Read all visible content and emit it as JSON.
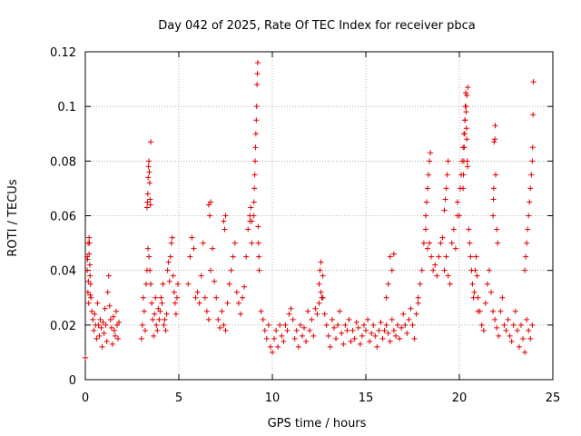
{
  "chart_data": {
    "type": "scatter",
    "title": "Day 042 of 2025, Rate Of TEC Index for receiver pbca",
    "xlabel": "GPS time / hours",
    "ylabel": "ROTI / TECUs",
    "xlim": [
      0,
      25
    ],
    "ylim": [
      0,
      0.12
    ],
    "xticks": [
      "0",
      "5",
      "10",
      "15",
      "20",
      "25"
    ],
    "yticks": [
      "0",
      "0.02",
      "0.04",
      "0.06",
      "0.08",
      "0.1",
      "0.12"
    ],
    "grid": true,
    "marker": "+",
    "color": "#e00000",
    "series": [
      {
        "name": "ROTI",
        "x": [
          0.0,
          0.1,
          0.15,
          0.2,
          0.25,
          0.3,
          0.35,
          0.4,
          0.45,
          0.5,
          0.55,
          0.6,
          0.65,
          0.7,
          0.75,
          0.8,
          0.85,
          0.9,
          0.95,
          1.0,
          1.05,
          1.1,
          1.15,
          1.2,
          1.25,
          1.3,
          1.35,
          1.4,
          1.45,
          1.5,
          1.55,
          1.6,
          1.65,
          1.7,
          1.75,
          1.8,
          0.1,
          0.12,
          0.14,
          0.16,
          0.18,
          0.2,
          0.22,
          0.24,
          0.26,
          0.28,
          3.0,
          3.05,
          3.1,
          3.15,
          3.2,
          3.25,
          3.3,
          3.35,
          3.4,
          3.45,
          3.5,
          3.55,
          3.6,
          3.65,
          3.7,
          3.75,
          3.8,
          3.85,
          3.9,
          3.95,
          4.0,
          4.05,
          4.1,
          4.15,
          4.2,
          4.25,
          4.3,
          4.35,
          4.4,
          4.45,
          4.5,
          4.55,
          4.6,
          4.65,
          4.7,
          4.75,
          4.8,
          4.85,
          4.9,
          4.95,
          3.3,
          3.32,
          3.34,
          3.36,
          3.38,
          3.4,
          3.42,
          3.44,
          3.46,
          3.48,
          3.5,
          5.5,
          5.6,
          5.7,
          5.8,
          5.9,
          6.0,
          6.1,
          6.2,
          6.3,
          6.4,
          6.5,
          6.6,
          6.7,
          6.8,
          6.9,
          7.0,
          7.1,
          7.2,
          7.3,
          7.4,
          7.5,
          7.6,
          7.7,
          7.8,
          7.9,
          8.0,
          8.1,
          8.2,
          8.3,
          8.4,
          8.5,
          8.6,
          8.7,
          8.8,
          8.9,
          6.6,
          6.65,
          6.7,
          7.4,
          7.45,
          7.5,
          8.8,
          8.85,
          8.9,
          9.0,
          9.02,
          9.04,
          9.06,
          9.08,
          9.1,
          9.12,
          9.14,
          9.16,
          9.18,
          9.2,
          9.22,
          9.24,
          9.26,
          9.28,
          9.3,
          9.4,
          9.5,
          9.6,
          9.7,
          9.8,
          9.9,
          10.0,
          10.1,
          10.2,
          10.3,
          10.4,
          10.5,
          10.6,
          10.7,
          10.8,
          10.9,
          11.0,
          11.1,
          11.2,
          11.3,
          11.4,
          11.5,
          11.6,
          11.7,
          11.8,
          11.9,
          12.0,
          12.1,
          12.2,
          12.3,
          12.4,
          12.5,
          12.6,
          12.7,
          12.8,
          12.9,
          13.0,
          13.1,
          13.2,
          13.3,
          13.4,
          13.5,
          13.6,
          13.7,
          13.8,
          13.9,
          14.0,
          14.1,
          14.2,
          14.3,
          14.4,
          14.5,
          14.6,
          14.7,
          14.8,
          14.9,
          15.0,
          15.1,
          15.2,
          15.3,
          15.4,
          15.5,
          15.6,
          15.7,
          15.8,
          15.9,
          16.0,
          16.1,
          16.2,
          16.3,
          16.4,
          16.5,
          16.6,
          16.7,
          16.8,
          16.9,
          17.0,
          17.1,
          17.2,
          17.3,
          17.4,
          17.5,
          17.6,
          17.7,
          17.8,
          12.5,
          12.55,
          12.6,
          12.65,
          12.7,
          16.1,
          16.2,
          16.3,
          16.4,
          16.5,
          17.8,
          17.9,
          18.0,
          18.1,
          18.2,
          18.3,
          18.4,
          18.5,
          18.6,
          18.7,
          18.8,
          18.9,
          19.0,
          19.1,
          19.2,
          19.3,
          19.4,
          19.5,
          19.6,
          19.7,
          19.8,
          19.9,
          18.2,
          18.25,
          18.3,
          18.35,
          18.4,
          18.45,
          19.2,
          19.25,
          19.3,
          19.35,
          19.4,
          19.9,
          20.0,
          20.05,
          20.1,
          20.15,
          20.2,
          20.25,
          20.3,
          20.35,
          20.4,
          20.45,
          20.5,
          20.55,
          20.6,
          20.65,
          20.7,
          20.75,
          20.8,
          20.85,
          20.9,
          20.95,
          21.0,
          20.2,
          20.22,
          20.24,
          20.26,
          20.28,
          20.3,
          20.32,
          20.34,
          20.36,
          20.38,
          20.4,
          20.42,
          20.44,
          21.0,
          21.1,
          21.2,
          21.3,
          21.4,
          21.5,
          21.6,
          21.7,
          21.8,
          21.9,
          22.0,
          22.1,
          22.2,
          22.3,
          22.4,
          22.5,
          22.6,
          22.7,
          22.8,
          22.9,
          23.0,
          23.1,
          23.2,
          23.3,
          23.4,
          23.5,
          23.6,
          23.7,
          23.8,
          23.9,
          21.8,
          21.82,
          21.84,
          21.86,
          21.9,
          21.92,
          21.94,
          22.0,
          22.05,
          23.5,
          23.55,
          23.6,
          23.65,
          23.7,
          23.75,
          23.8,
          23.85,
          23.9,
          23.92,
          23.94,
          23.96
        ],
        "y": [
          0.008,
          0.045,
          0.05,
          0.052,
          0.038,
          0.03,
          0.025,
          0.022,
          0.018,
          0.024,
          0.02,
          0.015,
          0.028,
          0.02,
          0.016,
          0.022,
          0.019,
          0.012,
          0.021,
          0.017,
          0.026,
          0.02,
          0.014,
          0.032,
          0.038,
          0.027,
          0.022,
          0.019,
          0.013,
          0.023,
          0.018,
          0.016,
          0.025,
          0.02,
          0.015,
          0.021,
          0.04,
          0.044,
          0.032,
          0.036,
          0.028,
          0.046,
          0.05,
          0.042,
          0.031,
          0.035,
          0.015,
          0.02,
          0.03,
          0.025,
          0.018,
          0.035,
          0.04,
          0.048,
          0.045,
          0.04,
          0.035,
          0.028,
          0.022,
          0.016,
          0.024,
          0.03,
          0.02,
          0.018,
          0.026,
          0.022,
          0.025,
          0.03,
          0.028,
          0.035,
          0.02,
          0.022,
          0.018,
          0.024,
          0.04,
          0.043,
          0.036,
          0.045,
          0.05,
          0.052,
          0.038,
          0.032,
          0.028,
          0.024,
          0.03,
          0.035,
          0.063,
          0.065,
          0.068,
          0.074,
          0.078,
          0.08,
          0.076,
          0.072,
          0.066,
          0.064,
          0.087,
          0.035,
          0.045,
          0.052,
          0.048,
          0.03,
          0.032,
          0.028,
          0.038,
          0.05,
          0.03,
          0.025,
          0.022,
          0.04,
          0.048,
          0.036,
          0.03,
          0.022,
          0.019,
          0.025,
          0.02,
          0.018,
          0.028,
          0.035,
          0.04,
          0.045,
          0.05,
          0.032,
          0.028,
          0.024,
          0.03,
          0.034,
          0.045,
          0.055,
          0.058,
          0.05,
          0.064,
          0.06,
          0.065,
          0.058,
          0.055,
          0.06,
          0.06,
          0.063,
          0.058,
          0.06,
          0.065,
          0.07,
          0.075,
          0.08,
          0.085,
          0.09,
          0.095,
          0.1,
          0.108,
          0.112,
          0.116,
          0.056,
          0.05,
          0.045,
          0.04,
          0.025,
          0.022,
          0.018,
          0.015,
          0.02,
          0.012,
          0.01,
          0.015,
          0.018,
          0.012,
          0.02,
          0.016,
          0.014,
          0.02,
          0.018,
          0.024,
          0.026,
          0.022,
          0.015,
          0.018,
          0.012,
          0.02,
          0.016,
          0.019,
          0.014,
          0.025,
          0.018,
          0.022,
          0.016,
          0.026,
          0.024,
          0.028,
          0.032,
          0.03,
          0.024,
          0.02,
          0.016,
          0.012,
          0.022,
          0.019,
          0.015,
          0.02,
          0.025,
          0.017,
          0.013,
          0.02,
          0.018,
          0.022,
          0.014,
          0.018,
          0.015,
          0.021,
          0.019,
          0.013,
          0.016,
          0.02,
          0.018,
          0.022,
          0.014,
          0.017,
          0.02,
          0.016,
          0.012,
          0.018,
          0.021,
          0.015,
          0.018,
          0.02,
          0.017,
          0.014,
          0.022,
          0.018,
          0.016,
          0.02,
          0.015,
          0.019,
          0.024,
          0.02,
          0.017,
          0.022,
          0.026,
          0.02,
          0.015,
          0.024,
          0.028,
          0.035,
          0.04,
          0.043,
          0.03,
          0.038,
          0.03,
          0.035,
          0.045,
          0.04,
          0.046,
          0.03,
          0.035,
          0.04,
          0.05,
          0.055,
          0.048,
          0.05,
          0.045,
          0.04,
          0.042,
          0.038,
          0.045,
          0.05,
          0.052,
          0.04,
          0.045,
          0.038,
          0.035,
          0.05,
          0.055,
          0.048,
          0.06,
          0.06,
          0.065,
          0.07,
          0.075,
          0.08,
          0.083,
          0.062,
          0.066,
          0.07,
          0.075,
          0.08,
          0.065,
          0.06,
          0.07,
          0.075,
          0.08,
          0.085,
          0.09,
          0.095,
          0.1,
          0.104,
          0.107,
          0.055,
          0.05,
          0.045,
          0.04,
          0.035,
          0.03,
          0.032,
          0.04,
          0.045,
          0.038,
          0.025,
          0.07,
          0.075,
          0.08,
          0.085,
          0.09,
          0.095,
          0.1,
          0.105,
          0.098,
          0.092,
          0.088,
          0.08,
          0.078,
          0.03,
          0.025,
          0.02,
          0.018,
          0.028,
          0.035,
          0.04,
          0.032,
          0.025,
          0.022,
          0.019,
          0.016,
          0.025,
          0.03,
          0.02,
          0.018,
          0.022,
          0.016,
          0.014,
          0.02,
          0.025,
          0.018,
          0.012,
          0.02,
          0.015,
          0.01,
          0.022,
          0.018,
          0.015,
          0.02,
          0.06,
          0.066,
          0.07,
          0.087,
          0.088,
          0.093,
          0.075,
          0.055,
          0.05,
          0.04,
          0.045,
          0.05,
          0.055,
          0.06,
          0.065,
          0.07,
          0.075,
          0.08,
          0.085,
          0.097,
          0.109
        ]
      }
    ]
  }
}
